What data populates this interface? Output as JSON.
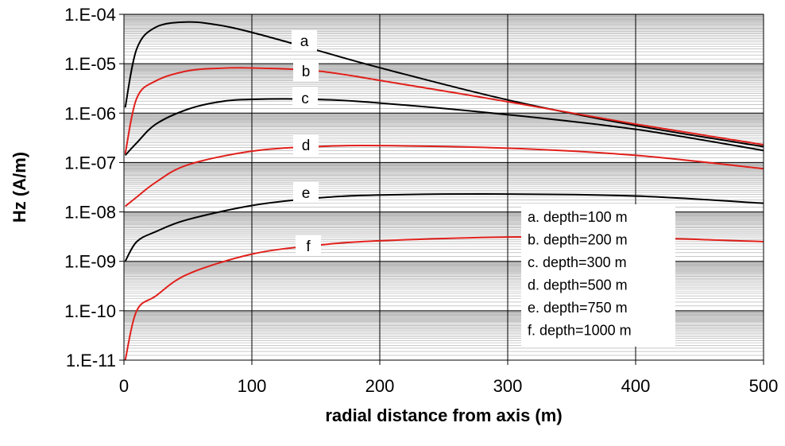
{
  "chart_data": {
    "type": "line",
    "title": "",
    "xlabel": "radial distance from  axis (m)",
    "ylabel": "Hz (A/m)",
    "xlim": [
      0,
      500
    ],
    "ylim": [
      1e-11,
      0.0001
    ],
    "yscale": "log",
    "grid": "major and minor",
    "x_ticks": [
      "0",
      "100",
      "200",
      "300",
      "400",
      "500"
    ],
    "y_ticks": [
      "1.E-11",
      "1.E-10",
      "1.E-09",
      "1.E-08",
      "1.E-07",
      "1.E-06",
      "1.E-05",
      "1.E-04"
    ],
    "legend_placement": "lower-right",
    "legend": [
      "a. depth=100 m",
      "b. depth=200 m",
      "c. depth=300 m",
      "d. depth=500 m",
      "e. depth=750 m",
      "f.  depth=1000 m"
    ],
    "series": [
      {
        "label": "a",
        "color": "#000000",
        "x": [
          1,
          10,
          25,
          50,
          75,
          100,
          150,
          200,
          300,
          400,
          500
        ],
        "y": [
          1.3e-06,
          2e-05,
          5.5e-05,
          7e-05,
          6e-05,
          4.3e-05,
          1.9e-05,
          8.3e-06,
          1.85e-06,
          5.6e-07,
          2.1e-07
        ]
      },
      {
        "label": "b",
        "color": "#e0201b",
        "x": [
          1,
          10,
          25,
          50,
          75,
          100,
          150,
          200,
          300,
          400,
          500
        ],
        "y": [
          1.5e-07,
          2e-06,
          4.5e-06,
          7.2e-06,
          8.1e-06,
          8.2e-06,
          7.2e-06,
          4.6e-06,
          1.7e-06,
          6e-07,
          2.3e-07
        ]
      },
      {
        "label": "c",
        "color": "#000000",
        "x": [
          1,
          10,
          25,
          50,
          75,
          100,
          150,
          200,
          300,
          400,
          500
        ],
        "y": [
          1.4e-07,
          2.5e-07,
          6e-07,
          1.2e-06,
          1.7e-06,
          1.9e-06,
          1.9e-06,
          1.6e-06,
          9.3e-07,
          4.7e-07,
          1.75e-07
        ]
      },
      {
        "label": "d",
        "color": "#e0201b",
        "x": [
          1,
          10,
          25,
          50,
          100,
          150,
          200,
          300,
          400,
          500
        ],
        "y": [
          1.3e-08,
          2e-08,
          4e-08,
          9e-08,
          1.7e-07,
          2.1e-07,
          2.2e-07,
          1.95e-07,
          1.4e-07,
          7.5e-08
        ]
      },
      {
        "label": "e",
        "color": "#000000",
        "x": [
          1,
          10,
          25,
          50,
          100,
          150,
          200,
          300,
          400,
          500
        ],
        "y": [
          1e-09,
          2.5e-09,
          4e-09,
          7e-09,
          1.35e-08,
          1.9e-08,
          2.2e-08,
          2.3e-08,
          2.1e-08,
          1.5e-08
        ]
      },
      {
        "label": "f",
        "color": "#e0201b",
        "x": [
          1,
          10,
          25,
          50,
          100,
          150,
          200,
          300,
          400,
          500
        ],
        "y": [
          1e-11,
          1e-10,
          2e-10,
          5.5e-10,
          1.4e-09,
          2.1e-09,
          2.6e-09,
          3.1e-09,
          3e-09,
          2.5e-09
        ]
      }
    ]
  }
}
